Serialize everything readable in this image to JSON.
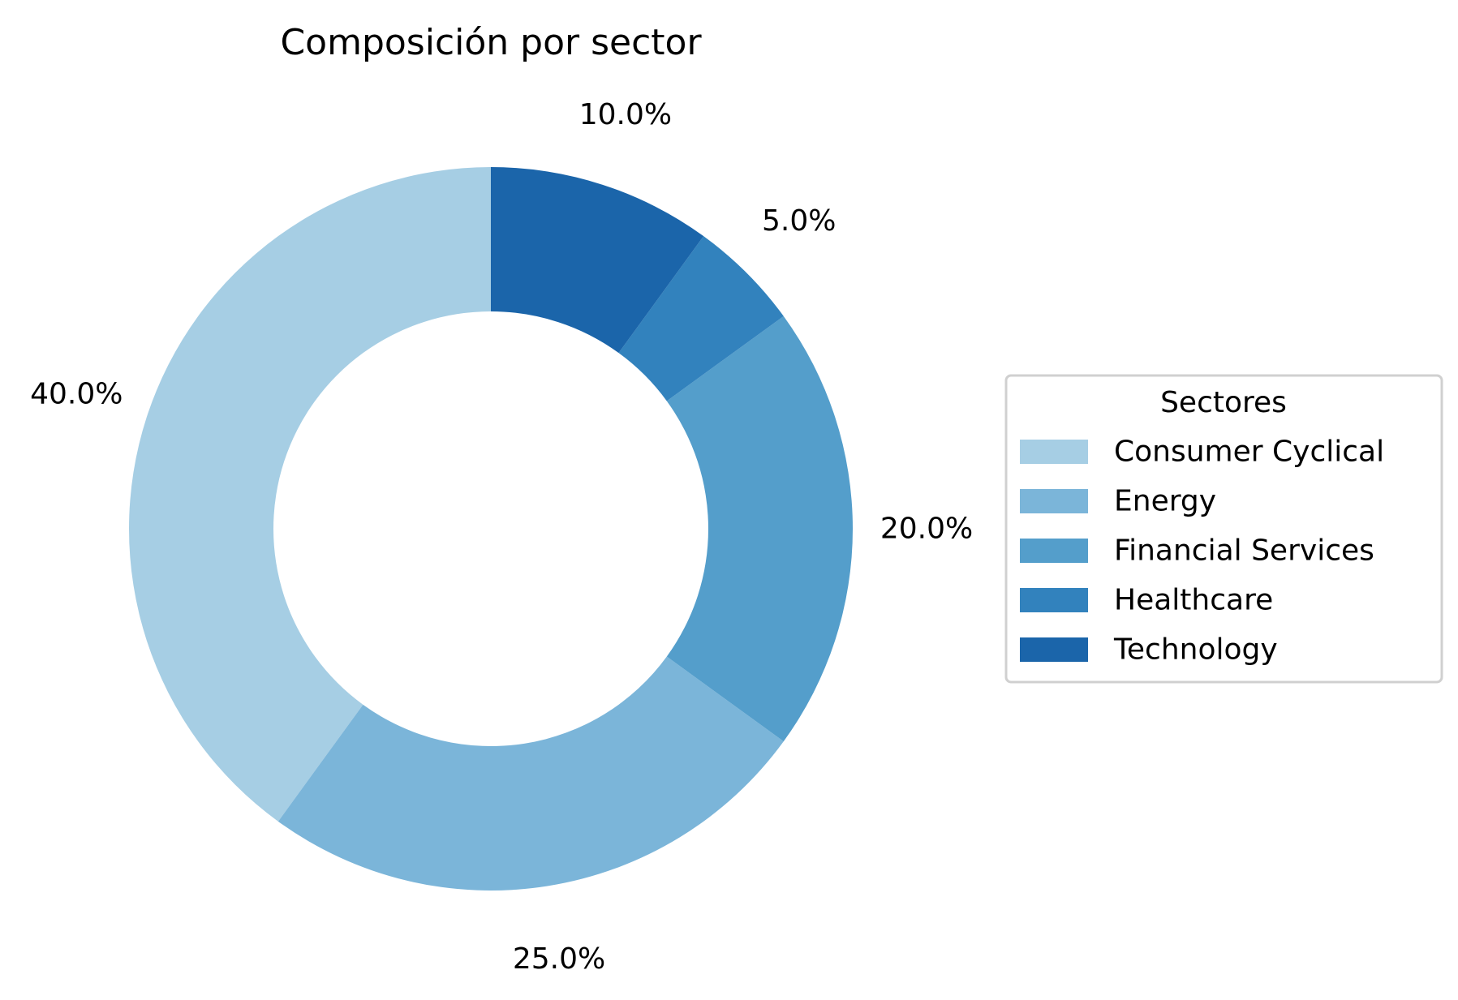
{
  "chart_data": {
    "type": "pie",
    "variant": "donut",
    "title": "Composición por sector",
    "start": "top",
    "direction": "counterclockwise",
    "slices": [
      {
        "name": "Consumer Cyclical",
        "value": 40.0,
        "label": "40.0%",
        "color": "#a6cee4"
      },
      {
        "name": "Energy",
        "value": 25.0,
        "label": "25.0%",
        "color": "#7bb5d9"
      },
      {
        "name": "Financial Services",
        "value": 20.0,
        "label": "20.0%",
        "color": "#549ecb"
      },
      {
        "name": "Healthcare",
        "value": 5.0,
        "label": "5.0%",
        "color": "#3282bd"
      },
      {
        "name": "Technology",
        "value": 10.0,
        "label": "10.0%",
        "color": "#1b65aa"
      }
    ],
    "legend": {
      "title": "Sectores",
      "placement": "right"
    }
  }
}
